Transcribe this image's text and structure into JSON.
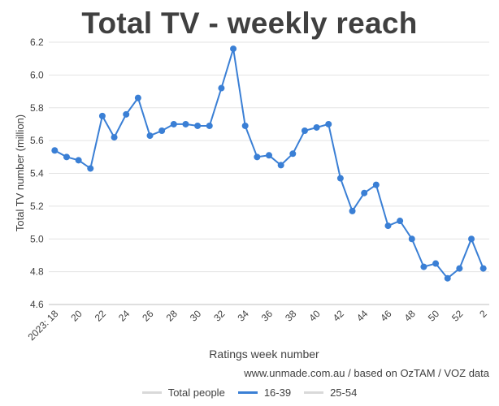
{
  "colors": {
    "series": "#3a7fd5",
    "grid": "#e3e3e3",
    "text": "#404040",
    "inactive": "#d9d9d9"
  },
  "source": "www.unmade.com.au / based on OzTAM / VOZ data",
  "legend": [
    {
      "label": "Total people",
      "color": "#d9d9d9"
    },
    {
      "label": "16-39",
      "color": "#3a7fd5"
    },
    {
      "label": "25-54",
      "color": "#d9d9d9"
    }
  ],
  "chart_data": {
    "type": "line",
    "title": "Total TV - weekly reach",
    "xlabel": "Ratings week number",
    "ylabel": "Total TV number (million)",
    "ylim": [
      4.6,
      6.2
    ],
    "yticks": [
      "6.2",
      "6.0",
      "5.8",
      "5.6",
      "5.4",
      "5.2",
      "5.0",
      "4.8",
      "4.6"
    ],
    "grid": true,
    "legend_position": "bottom",
    "categories": [
      "2023: 18",
      "19",
      "20",
      "21",
      "22",
      "23",
      "24",
      "25",
      "26",
      "27",
      "28",
      "29",
      "30",
      "31",
      "32",
      "33",
      "34",
      "35",
      "36",
      "37",
      "38",
      "39",
      "40",
      "41",
      "42",
      "43",
      "44",
      "45",
      "46",
      "47",
      "48",
      "49",
      "50",
      "51",
      "52",
      "1",
      "2"
    ],
    "tick_labels": [
      "2023: 18",
      "20",
      "22",
      "24",
      "26",
      "28",
      "30",
      "32",
      "34",
      "36",
      "38",
      "40",
      "42",
      "44",
      "46",
      "48",
      "50",
      "52",
      "2"
    ],
    "series": [
      {
        "name": "16-39",
        "values": [
          5.54,
          5.5,
          5.48,
          5.43,
          5.75,
          5.62,
          5.76,
          5.86,
          5.63,
          5.66,
          5.7,
          5.7,
          5.69,
          5.69,
          5.92,
          6.16,
          5.69,
          5.5,
          5.51,
          5.45,
          5.52,
          5.66,
          5.68,
          5.7,
          5.37,
          5.17,
          5.28,
          5.33,
          5.08,
          5.11,
          5.0,
          4.83,
          4.85,
          4.76,
          4.82,
          5.0,
          4.82
        ]
      }
    ]
  }
}
